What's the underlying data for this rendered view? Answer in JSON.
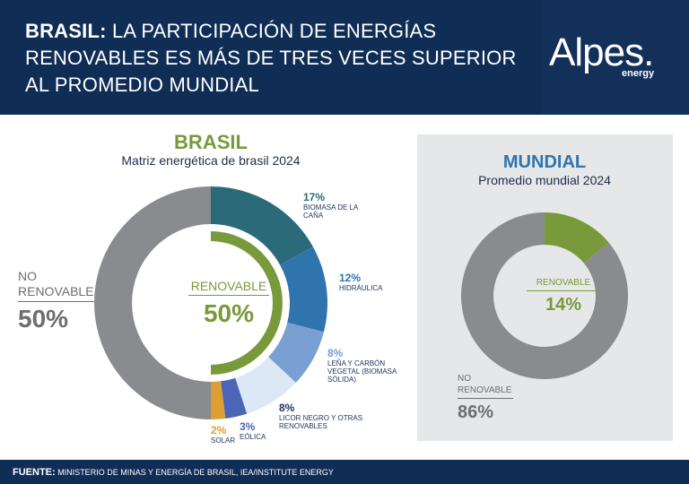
{
  "header": {
    "title_bold": "BRASIL:",
    "title_rest": "LA PARTICIPACIÓN DE ENERGÍAS RENOVABLES ES MÁS DE TRES VECES SUPERIOR AL PROMEDIO MUNDIAL",
    "logo": "Alpes.",
    "logo_sub": "energy"
  },
  "chart_data": [
    {
      "type": "pie",
      "title": "BRASIL",
      "subtitle": "Matriz energética de brasil 2024",
      "categories": [
        "BIOMASA DE LA CAÑA",
        "HIDRÁULICA",
        "LEÑA Y CARBÓN VEGETAL (BIOMASA SÓLIDA)",
        "LICOR NEGRO Y OTRAS RENOVABLES",
        "EÓLICA",
        "SOLAR",
        "NO RENOVABLE"
      ],
      "values": [
        17,
        12,
        8,
        8,
        3,
        2,
        50
      ],
      "value_labels": [
        "17%",
        "12%",
        "8%",
        "8%",
        "3%",
        "2%",
        "50%"
      ],
      "colors": [
        "#2b6b79",
        "#2f74ad",
        "#7a9fd3",
        "#dde8f6",
        "#4b66b6",
        "#dd9f34",
        "#8a8b8e"
      ],
      "renewable_total": {
        "label": "RENOVABLE",
        "value": 50,
        "value_label": "50%",
        "color": "#789a3a"
      }
    },
    {
      "type": "pie",
      "title": "MUNDIAL",
      "subtitle": "Promedio mundial 2024",
      "categories": [
        "RENOVABLE",
        "NO RENOVABLE"
      ],
      "values": [
        14,
        86
      ],
      "value_labels": [
        "14%",
        "86%"
      ],
      "colors": [
        "#789a3a",
        "#8a8b8e"
      ]
    }
  ],
  "footer": {
    "label": "FUENTE:",
    "text": "MINISTERIO DE MINAS Y ENERGÍA DE BRASIL, IEA/INSTITUTE ENERGY"
  }
}
